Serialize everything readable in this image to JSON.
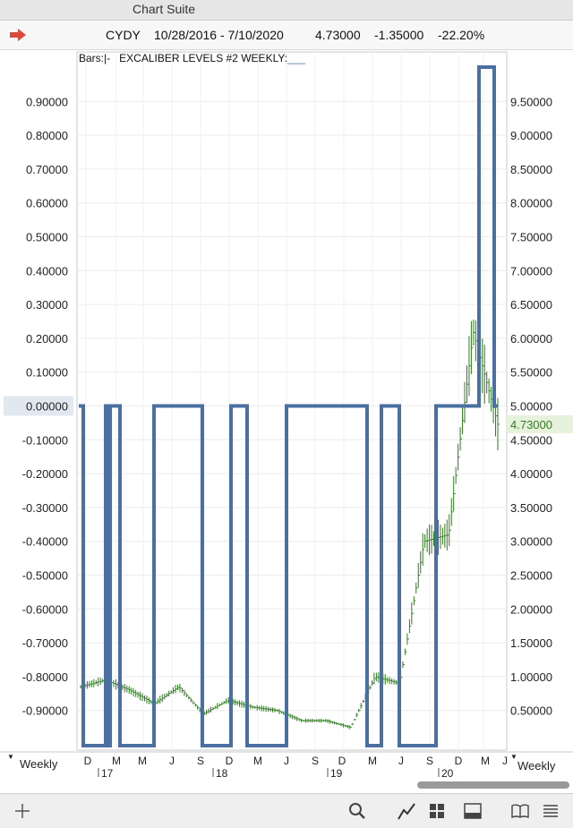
{
  "window": {
    "title": "Chart Suite"
  },
  "header": {
    "symbol": "CYDY",
    "date_range": "10/28/2016 - 7/10/2020",
    "last": "4.73000",
    "change": "-1.35000",
    "change_pct": "-22.20%",
    "arrow_icon": "red-arrow-icon"
  },
  "indicator_bar": {
    "bars_label": "Bars:",
    "bars_value": "|-",
    "indicator_label": "EXCALIBER LEVELS #2 WEEKLY:",
    "indicator_value": "___"
  },
  "left_axis": {
    "ticks": [
      "0.90000",
      "0.80000",
      "0.70000",
      "0.60000",
      "0.50000",
      "0.40000",
      "0.30000",
      "0.20000",
      "0.10000",
      "0.00000",
      "-0.10000",
      "-0.20000",
      "-0.30000",
      "-0.40000",
      "-0.50000",
      "-0.60000",
      "-0.70000",
      "-0.80000",
      "-0.90000"
    ],
    "highlight": "0.00000"
  },
  "right_axis": {
    "ticks": [
      "9.50000",
      "9.00000",
      "8.50000",
      "8.00000",
      "7.50000",
      "7.00000",
      "6.50000",
      "6.00000",
      "5.50000",
      "5.00000",
      "4.50000",
      "4.00000",
      "3.50000",
      "3.00000",
      "2.50000",
      "2.00000",
      "1.50000",
      "1.00000",
      "0.50000"
    ],
    "last_price_label": "4.73000"
  },
  "time_axis": {
    "months": [
      "D",
      "M",
      "M",
      "J",
      "S",
      "D",
      "M",
      "J",
      "S",
      "D",
      "M",
      "J",
      "S",
      "D",
      "M",
      "J"
    ],
    "years": [
      "17",
      "18",
      "19",
      "20"
    ],
    "period_left": "Weekly",
    "period_right": "Weekly"
  },
  "chart_data": {
    "type": "line",
    "x_range": [
      "10/28/2016",
      "7/10/2020"
    ],
    "price_series": {
      "name": "CYDY",
      "style": "bars",
      "color": "#2e7d1f",
      "ylim": [
        0,
        10
      ],
      "approx_weekly_close": [
        {
          "date": "Oct 2016",
          "value": 0.85
        },
        {
          "date": "Mar 2017",
          "value": 0.95
        },
        {
          "date": "Jun 2017",
          "value": 0.8
        },
        {
          "date": "Dec 2017",
          "value": 0.6
        },
        {
          "date": "Feb 2018",
          "value": 0.85
        },
        {
          "date": "Jun 2018",
          "value": 0.45
        },
        {
          "date": "Sep 2018",
          "value": 0.65
        },
        {
          "date": "Dec 2018",
          "value": 0.55
        },
        {
          "date": "Mar 2019",
          "value": 0.5
        },
        {
          "date": "Jun 2019",
          "value": 0.35
        },
        {
          "date": "Sep 2019",
          "value": 0.35
        },
        {
          "date": "Dec 2019",
          "value": 0.25
        },
        {
          "date": "Jan 2020",
          "value": 1.0
        },
        {
          "date": "Mar 2020",
          "value": 0.9
        },
        {
          "date": "Apr 2020",
          "value": 3.0
        },
        {
          "date": "May 2020",
          "value": 3.1
        },
        {
          "date": "Jun 2020",
          "value": 6.1
        },
        {
          "date": "Jul 2020",
          "value": 4.73
        }
      ]
    },
    "indicator_series": {
      "name": "EXCALIBER LEVELS #2 WEEKLY",
      "color": "#4a6fa0",
      "ylim": [
        -1.0,
        1.0
      ],
      "steps": [
        {
          "from": "10/28/2016",
          "to": "11/2016",
          "value": 0.0
        },
        {
          "from": "11/2016",
          "to": "2/2017",
          "value": -1.0
        },
        {
          "from": "2/2017",
          "to": "2/2017",
          "value": 0.0
        },
        {
          "from": "2/2017",
          "to": "3/2017",
          "value": -1.0
        },
        {
          "from": "3/2017",
          "to": "4/2017",
          "value": 0.0
        },
        {
          "from": "4/2017",
          "to": "6/2017",
          "value": -1.0
        },
        {
          "from": "6/2017",
          "to": "11/2017",
          "value": 0.0
        },
        {
          "from": "11/2017",
          "to": "2/2018",
          "value": -1.0
        },
        {
          "from": "2/2018",
          "to": "4/2018",
          "value": 0.0
        },
        {
          "from": "4/2018",
          "to": "8/2018",
          "value": -1.0
        },
        {
          "from": "8/2018",
          "to": "4/2019",
          "value": 0.0
        },
        {
          "from": "4/2019",
          "to": "5/2019",
          "value": -1.0
        },
        {
          "from": "5/2019",
          "to": "7/2019",
          "value": 0.0
        },
        {
          "from": "7/2019",
          "to": "12/2019",
          "value": -1.0
        },
        {
          "from": "12/2019",
          "to": "5/2020",
          "value": 0.0
        },
        {
          "from": "5/2020",
          "to": "6/2020",
          "value": 1.0
        },
        {
          "from": "6/2020",
          "to": "7/2020",
          "value": 0.0
        }
      ]
    },
    "grid": true
  },
  "toolbar": {
    "icons": [
      "plus-icon",
      "search-icon",
      "line-chart-icon",
      "grid-icon",
      "panel-icon",
      "book-icon",
      "list-icon"
    ]
  }
}
